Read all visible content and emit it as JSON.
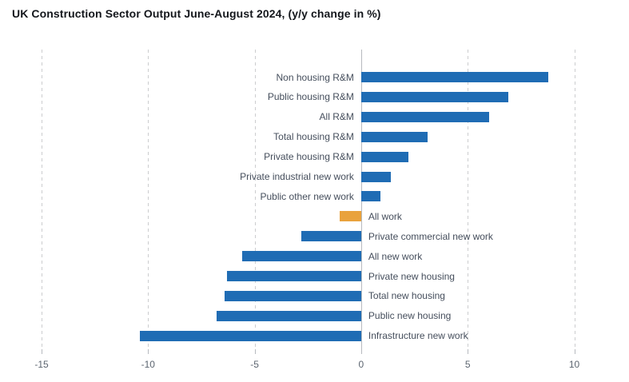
{
  "title": "UK Construction Sector Output June-August 2024, (y/y change in %)",
  "chart_data": {
    "type": "bar",
    "orientation": "horizontal",
    "title": "UK Construction Sector Output June-August 2024, (y/y change in %)",
    "value_unit": "% y/y change",
    "categories": [
      "Non housing R&M",
      "Public housing R&M",
      "All R&M",
      "Total housing R&M",
      "Private housing R&M",
      "Private industrial new work",
      "Public other new work",
      "All work",
      "Private commercial new work",
      "All new work",
      "Private new housing",
      "Total new housing",
      "Public new housing",
      "Infrastructure new work"
    ],
    "values": [
      8.8,
      6.9,
      6.0,
      3.1,
      2.2,
      1.4,
      0.9,
      -1.0,
      -2.8,
      -5.6,
      -6.3,
      -6.4,
      -6.8,
      -10.4
    ],
    "highlight_category": "All work",
    "colors": {
      "bar": "#1f6cb4",
      "highlight": "#e9a23c",
      "gridline": "#cccdcf",
      "zero_line": "#b7babf",
      "tick_label": "#5c6570",
      "category_label": "#454e5c",
      "title": "#14171c"
    },
    "xlim": [
      -15,
      10
    ],
    "x_ticks": [
      -15,
      -10,
      -5,
      0,
      5,
      10
    ],
    "x_tick_labels": [
      "-15",
      "-10",
      "-5",
      "0",
      "5",
      "10"
    ],
    "grid": "vertical-dashed",
    "legend": "none",
    "label_placement": "labels sit beside the zero axis: right-aligned left of axis for positive bars, left-aligned right of axis for negative bars"
  }
}
